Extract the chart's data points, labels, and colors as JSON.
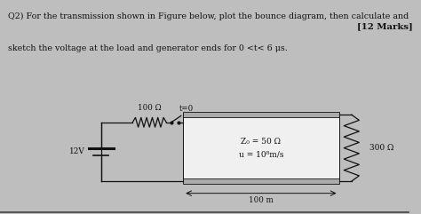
{
  "bg_top": "#bebebe",
  "bg_bottom": "#c8c8c8",
  "bg_tl_box": "#f0f0f0",
  "question_line1": "Q2) For the transmission shown in Figure below, plot the bounce diagram, then calculate and",
  "question_line2": "sketch the voltage at the load and generator ends for 0 <t< 6 μs.",
  "marks_text": "[12 Marks]",
  "label_R": "100 Ω",
  "label_sw": "t=0",
  "label_V": "12V",
  "label_Z0": "Z₀ = 50 Ω",
  "label_u": "u = 10⁸m/s",
  "label_RL": "300 Ω",
  "label_len": "100 m",
  "text_color": "#111111",
  "line_color": "#111111",
  "sep_color": "#888888",
  "fig_width": 4.74,
  "fig_height": 2.41,
  "dpi": 100
}
